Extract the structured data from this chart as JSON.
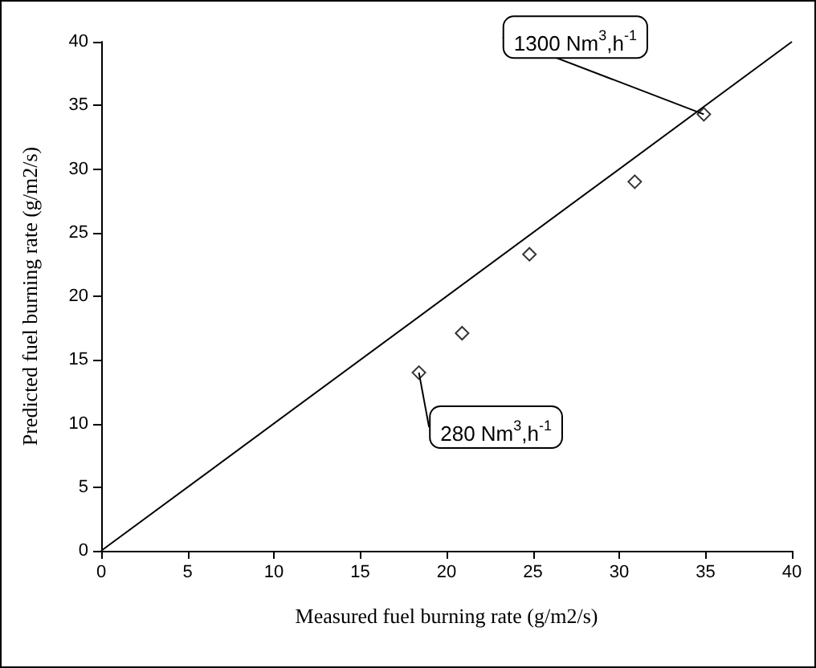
{
  "chart_data": {
    "type": "scatter",
    "xlabel": "Measured fuel burning rate (g/m2/s)",
    "ylabel": "Predicted fuel burning rate (g/m2/s)",
    "xlim": [
      0,
      40
    ],
    "xticks": [
      0,
      5,
      10,
      15,
      20,
      25,
      30,
      35,
      40
    ],
    "ylim": [
      0,
      40
    ],
    "yticks": [
      0,
      5,
      10,
      15,
      20,
      25,
      30,
      35,
      40
    ],
    "grid": false,
    "marker": "diamond",
    "series": [
      {
        "color": "#000000",
        "x": [
          18.4,
          20.9,
          24.8,
          30.9,
          34.9
        ],
        "values": [
          14.0,
          17.1,
          23.3,
          29.0,
          34.3
        ]
      },
      {
        "type": "line",
        "color": "#000000",
        "x": [
          0,
          40
        ],
        "values": [
          0,
          40
        ],
        "marker": "none",
        "line_style": "solid"
      }
    ],
    "annotations": [
      {
        "text": "1300 Nm$^{3}$,h$^{-1}$",
        "x": 34.9,
        "y": 34.3
      },
      {
        "text": "280 Nm$^{3}$,h$^{-1}$",
        "x": 18.4,
        "y": 14.0
      }
    ]
  }
}
